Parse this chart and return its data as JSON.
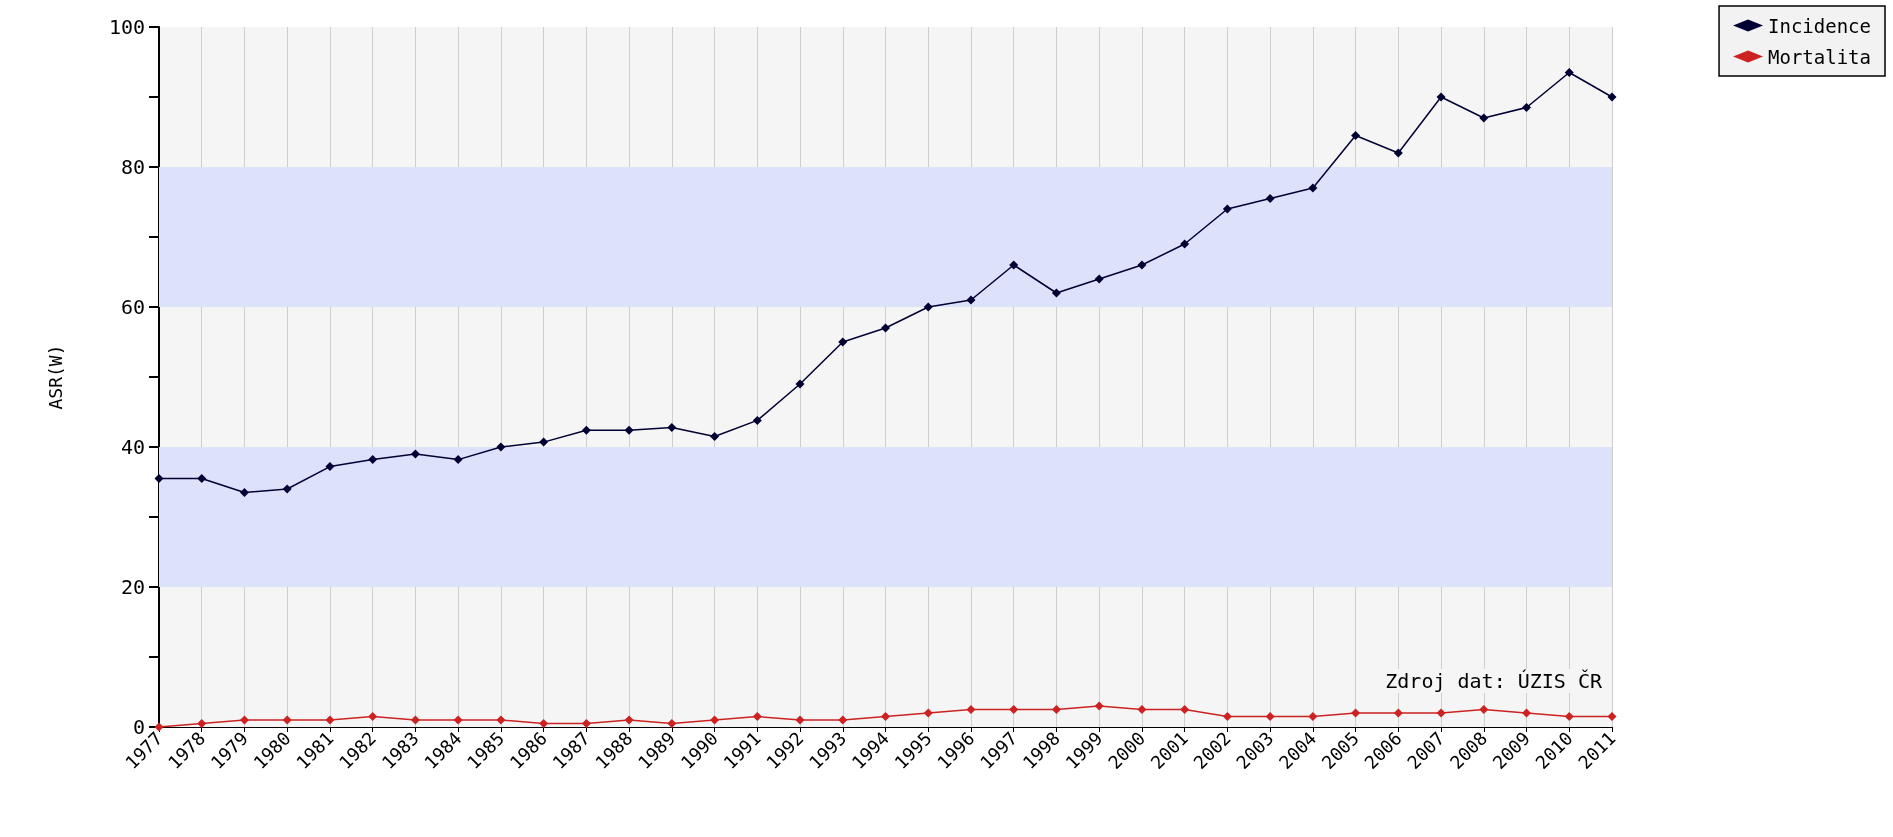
{
  "chart_data": {
    "type": "line",
    "ylabel": "ASR(W)",
    "categories": [
      "1977",
      "1978",
      "1979",
      "1980",
      "1981",
      "1982",
      "1983",
      "1984",
      "1985",
      "1986",
      "1987",
      "1988",
      "1989",
      "1990",
      "1991",
      "1992",
      "1993",
      "1994",
      "1995",
      "1996",
      "1997",
      "1998",
      "1999",
      "2000",
      "2001",
      "2002",
      "2003",
      "2004",
      "2005",
      "2006",
      "2007",
      "2008",
      "2009",
      "2010",
      "2011"
    ],
    "series": [
      {
        "name": "Incidence",
        "color": "#000033",
        "values": [
          35.5,
          35.5,
          33.5,
          34,
          37.2,
          38.2,
          39,
          38.2,
          40,
          40.7,
          42.4,
          42.4,
          42.8,
          41.5,
          43.8,
          49,
          55,
          57,
          60,
          61,
          66,
          62,
          64,
          66,
          69,
          74,
          75.5,
          77,
          84.5,
          82,
          90,
          87,
          88.5,
          93.5,
          90
        ]
      },
      {
        "name": "Mortalita",
        "color": "#cc2222",
        "values": [
          0,
          0.5,
          1,
          1,
          1,
          1.5,
          1,
          1,
          1,
          0.5,
          0.5,
          1,
          0.5,
          1,
          1.5,
          1,
          1,
          1.5,
          2,
          2.5,
          2.5,
          2.5,
          3,
          2.5,
          2.5,
          1.5,
          1.5,
          1.5,
          2,
          2,
          2,
          2.5,
          2,
          1.5,
          1.5
        ]
      }
    ],
    "ylim": [
      0,
      100
    ],
    "yticks": [
      0,
      {
        "value": 10,
        "label": null
      },
      20,
      {
        "value": 30,
        "label": null
      },
      40,
      {
        "value": 50,
        "label": null
      },
      60,
      {
        "value": 70,
        "label": null
      },
      80,
      {
        "value": 90,
        "label": null
      },
      100
    ],
    "bands": [
      {
        "axis": "y",
        "from": 20,
        "to": 40,
        "color": "#dce2fa"
      },
      {
        "axis": "y",
        "from": 60,
        "to": 80,
        "color": "#dce2fa"
      }
    ],
    "annotations": [
      "Zdroj dat: ÚZIS ČR"
    ],
    "grid": "x",
    "legend": "top right",
    "marker": "diamond",
    "line_style": "solid"
  }
}
